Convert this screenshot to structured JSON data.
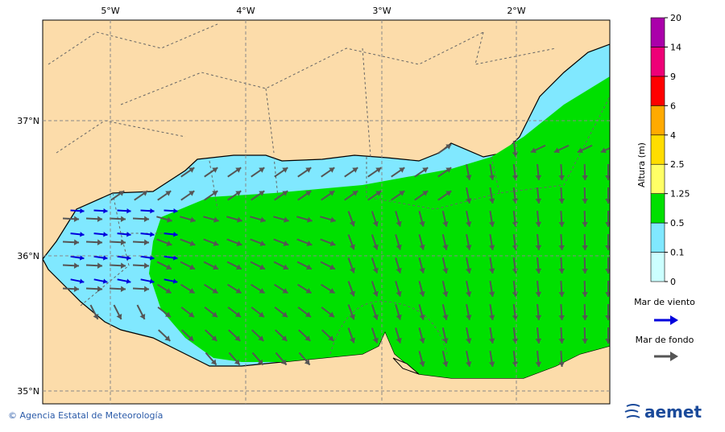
{
  "map": {
    "lon_labels": [
      "5°W",
      "4°W",
      "3°W",
      "2°W"
    ],
    "lat_labels": [
      "37°N",
      "36°N",
      "35°N"
    ]
  },
  "colorbar": {
    "title": "Altura (m)",
    "levels": [
      0,
      0.1,
      0.5,
      1.25,
      2.5,
      4,
      6,
      9,
      14,
      20
    ],
    "colors": [
      "#ccffff",
      "#80e8ff",
      "#00e000",
      "#ffff66",
      "#ffdd00",
      "#ffaa00",
      "#ff0000",
      "#ee0077",
      "#aa00aa"
    ]
  },
  "legend": {
    "items": [
      {
        "label": "Mar de viento",
        "color": "#0000dd"
      },
      {
        "label": "Mar de fondo",
        "color": "#555555"
      }
    ]
  },
  "footer": {
    "credit": "© Agencia Estatal de Meteorología",
    "logo": "aemet"
  }
}
